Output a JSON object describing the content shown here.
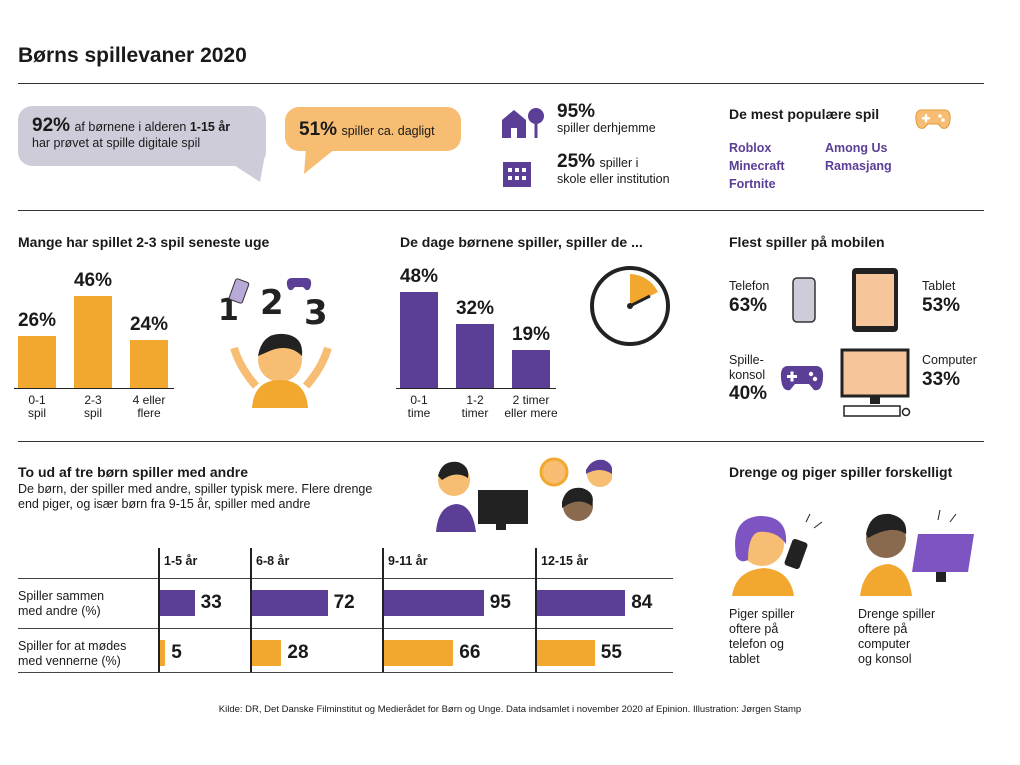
{
  "title": "Børns spillevaner 2020",
  "colors": {
    "purple": "#5b3e96",
    "orange": "#f2a82f",
    "bubble_gray": "#cfccd9",
    "bubble_orange": "#f6bd73"
  },
  "stats": {
    "bubble1": {
      "pct": "92%",
      "text_a": "af børnene i alderen ",
      "text_b": "1-15 år",
      "text_c": "har prøvet at spille digitale spil"
    },
    "bubble2": {
      "pct": "51%",
      "text": "spiller ca. dagligt"
    },
    "home": {
      "pct": "95%",
      "text": "spiller derhjemme",
      "icon": "house-icon"
    },
    "school": {
      "pct": "25%",
      "text_a": "spiller i",
      "text_b": "skole eller institution",
      "icon": "school-icon"
    }
  },
  "popular": {
    "title": "De mest populære spil",
    "icon": "gamepad-icon",
    "games": [
      "Roblox",
      "Minecraft",
      "Fortnite",
      "Among Us",
      "Ramasjang"
    ]
  },
  "section2": {
    "games_title": "Mange har spillet 2-3 spil seneste uge",
    "time_title": "De dage børnene spiller, spiller de ...",
    "device_title": "Flest spiller på mobilen"
  },
  "chart_data": [
    {
      "type": "bar",
      "title": "Mange har spillet 2-3 spil seneste uge",
      "categories": [
        "0-1 spil",
        "2-3 spil",
        "4 eller flere"
      ],
      "category_lines": [
        [
          "0-1",
          "spil"
        ],
        [
          "2-3",
          "spil"
        ],
        [
          "4 eller",
          "flere"
        ]
      ],
      "values": [
        26,
        46,
        24
      ],
      "labels": [
        "26%",
        "46%",
        "24%"
      ],
      "ylim": [
        0,
        50
      ],
      "color": "#f2a82f"
    },
    {
      "type": "bar",
      "title": "De dage børnene spiller, spiller de ...",
      "categories": [
        "0-1 time",
        "1-2 timer",
        "2 timer eller mere"
      ],
      "category_lines": [
        [
          "0-1",
          "time"
        ],
        [
          "1-2",
          "timer"
        ],
        [
          "2 timer",
          "eller mere"
        ]
      ],
      "values": [
        48,
        32,
        19
      ],
      "labels": [
        "48%",
        "32%",
        "19%"
      ],
      "ylim": [
        0,
        50
      ],
      "color": "#5b3e96"
    },
    {
      "type": "bar",
      "title": "To ud af tre børn spiller med andre",
      "orientation": "horizontal",
      "categories": [
        "1-5 år",
        "6-8 år",
        "9-11 år",
        "12-15 år"
      ],
      "series": [
        {
          "name": "Spiller sammen med andre (%)",
          "values": [
            33,
            72,
            95,
            84
          ],
          "color": "#5b3e96"
        },
        {
          "name": "Spiller for at mødes med vennerne (%)",
          "values": [
            5,
            28,
            66,
            55
          ],
          "color": "#f2a82f"
        }
      ],
      "xlim": [
        0,
        100
      ]
    }
  ],
  "devices": [
    {
      "name": "Telefon",
      "pct": "63%",
      "icon": "phone-icon"
    },
    {
      "name": "Tablet",
      "pct": "53%",
      "icon": "tablet-icon"
    },
    {
      "name_a": "Spille-",
      "name_b": "konsol",
      "pct": "40%",
      "icon": "console-icon"
    },
    {
      "name": "Computer",
      "pct": "33%",
      "icon": "computer-icon"
    }
  ],
  "social": {
    "title": "To ud af tre børn spiller med andre",
    "desc_a": "De børn, der spiller med andre, spiller typisk mere. Flere drenge",
    "desc_b": "end piger, og især børn fra 9-15 år, spiller med andre",
    "row1_a": "Spiller sammen",
    "row1_b": "med andre (%)",
    "row2_a": "Spiller for at mødes",
    "row2_b": "med vennerne (%)"
  },
  "gender": {
    "title": "Drenge og piger spiller forskelligt",
    "girls": [
      "Piger spiller",
      "oftere på",
      "telefon og",
      "tablet"
    ],
    "boys": [
      "Drenge spiller",
      "oftere på",
      "computer",
      "og konsol"
    ]
  },
  "source": "Kilde: DR, Det Danske Filminstitut og Medierådet for Børn og Unge. Data indsamlet i november 2020 af Epinion. Illustration: Jørgen Stamp"
}
